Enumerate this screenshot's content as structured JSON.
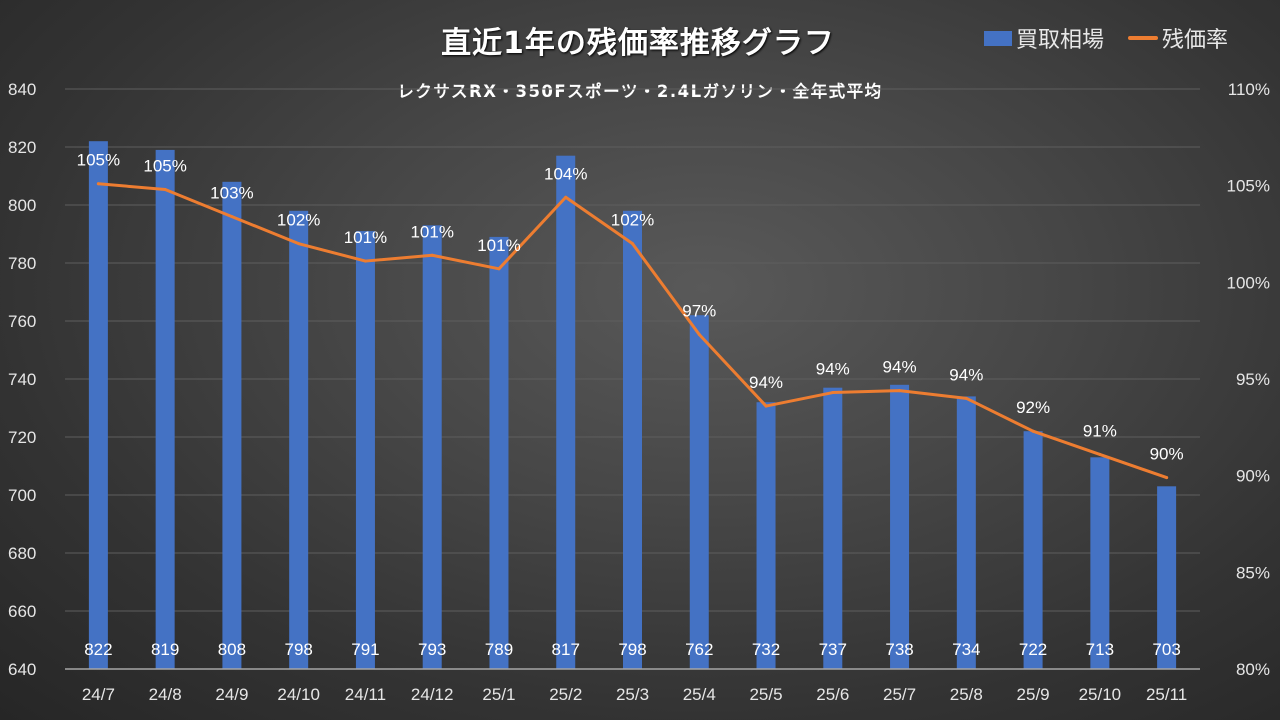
{
  "chart_data": {
    "type": "bar+line",
    "title": "直近1年の残価率推移グラフ",
    "subtitle": "レクサスRX・350Fスポーツ・2.4Lガソリン・全年式平均",
    "categories": [
      "24/7",
      "24/8",
      "24/9",
      "24/10",
      "24/11",
      "24/12",
      "25/1",
      "25/2",
      "25/3",
      "25/4",
      "25/5",
      "25/6",
      "25/7",
      "25/8",
      "25/9",
      "25/10",
      "25/11"
    ],
    "series": [
      {
        "name": "買取相場",
        "type": "bar",
        "axis": "left",
        "color": "#4472c4",
        "values": [
          822,
          819,
          808,
          798,
          791,
          793,
          789,
          817,
          798,
          762,
          732,
          737,
          738,
          734,
          722,
          713,
          703
        ],
        "labels": [
          "822",
          "819",
          "808",
          "798",
          "791",
          "793",
          "789",
          "817",
          "798",
          "762",
          "732",
          "737",
          "738",
          "734",
          "722",
          "713",
          "703"
        ]
      },
      {
        "name": "残価率",
        "type": "line",
        "axis": "right",
        "color": "#ed7d31",
        "values": [
          105.1,
          104.8,
          103.4,
          102.0,
          101.1,
          101.4,
          100.7,
          104.4,
          102.0,
          97.3,
          93.6,
          94.3,
          94.4,
          94.0,
          92.3,
          91.1,
          89.9
        ],
        "labels": [
          "105%",
          "105%",
          "103%",
          "102%",
          "101%",
          "101%",
          "101%",
          "104%",
          "102%",
          "97%",
          "94%",
          "94%",
          "94%",
          "94%",
          "92%",
          "91%",
          "90%"
        ]
      }
    ],
    "y_left": {
      "range": [
        640,
        840
      ],
      "ticks": [
        "840",
        "820",
        "800",
        "780",
        "760",
        "740",
        "720",
        "700",
        "680",
        "660",
        "640"
      ]
    },
    "y_right": {
      "range": [
        80,
        110
      ],
      "ticks": [
        "110%",
        "105%",
        "100%",
        "95%",
        "90%",
        "85%",
        "80%"
      ]
    },
    "grid": true,
    "legend_position": "top-right"
  },
  "legend": {
    "bar_label": "買取相場",
    "line_label": "残価率"
  }
}
